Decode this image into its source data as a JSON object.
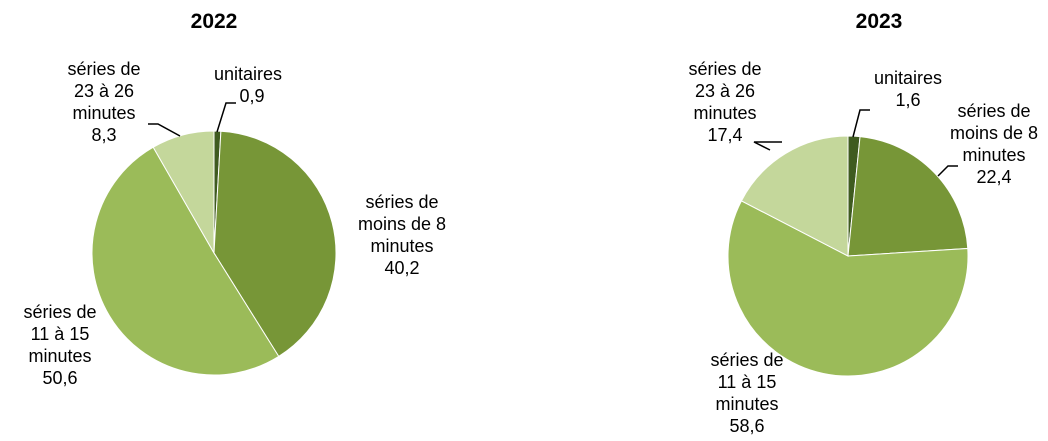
{
  "colors": {
    "unitaires": "#3f5b1f",
    "series_moins_8": "#779637",
    "series_11_15": "#9bbb59",
    "series_23_26": "#c4d79b"
  },
  "chart_data": [
    {
      "type": "pie",
      "title": "2022",
      "slices": [
        {
          "key": "unitaires",
          "label": [
            "unitaires"
          ],
          "value": 0.9,
          "value_label": "0,9"
        },
        {
          "key": "series_moins_8",
          "label": [
            "séries de",
            "moins de 8",
            "minutes"
          ],
          "value": 40.2,
          "value_label": "40,2"
        },
        {
          "key": "series_11_15",
          "label": [
            "séries de",
            "11 à 15",
            "minutes"
          ],
          "value": 50.6,
          "value_label": "50,6"
        },
        {
          "key": "series_23_26",
          "label": [
            "séries de",
            "23 à 26",
            "minutes"
          ],
          "value": 8.3,
          "value_label": "8,3"
        }
      ]
    },
    {
      "type": "pie",
      "title": "2023",
      "slices": [
        {
          "key": "unitaires",
          "label": [
            "unitaires"
          ],
          "value": 1.6,
          "value_label": "1,6"
        },
        {
          "key": "series_moins_8",
          "label": [
            "séries de",
            "moins de 8",
            "minutes"
          ],
          "value": 22.4,
          "value_label": "22,4"
        },
        {
          "key": "series_11_15",
          "label": [
            "séries de",
            "11 à 15",
            "minutes"
          ],
          "value": 58.6,
          "value_label": "58,6"
        },
        {
          "key": "series_23_26",
          "label": [
            "séries de",
            "23 à 26",
            "minutes"
          ],
          "value": 17.4,
          "value_label": "17,4"
        }
      ]
    }
  ]
}
